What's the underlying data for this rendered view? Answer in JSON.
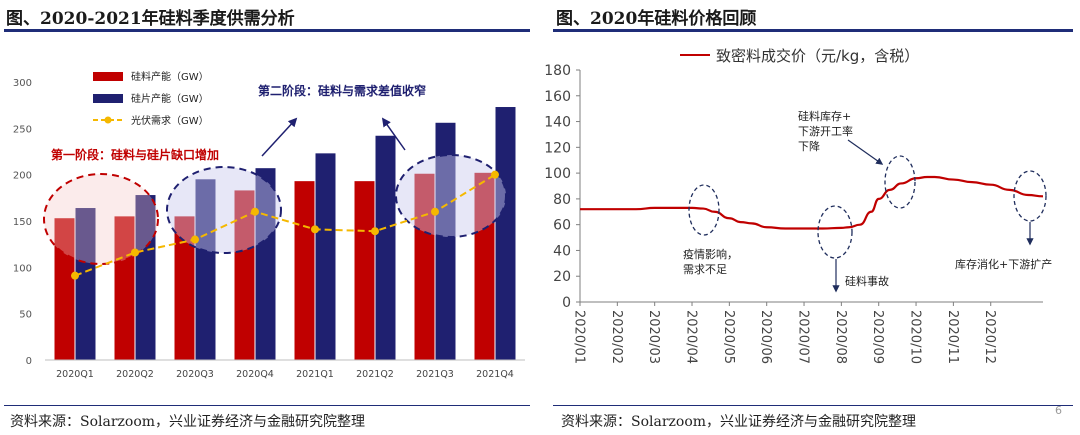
{
  "left_panel": {
    "title": "图、2020-2021年硅料季度供需分析",
    "source": "资料来源：Solarzoom，兴业证券经济与金融研究院整理",
    "annotation_stage2": "第二阶段：硅料与需求差值收窄",
    "annotation_stage1": "第一阶段：硅料与硅片缺口增加"
  },
  "right_panel": {
    "title": "图、2020年硅料价格回顾",
    "source": "资料来源：Solarzoom，兴业证券经济与金融研究院整理",
    "annotation_inventory": "硅料库存+\n下游开工率\n下降",
    "annotation_epidemic": "疫情影响，\n需求不足",
    "annotation_accident": "硅料事故",
    "annotation_destock": "库存消化+下游扩产"
  },
  "page_number": "6",
  "colors": {
    "red_bar": "#c00000",
    "navy_bar": "#1f2070",
    "demand": "#f5b800",
    "price_line": "#c00000",
    "rule": "#1f2d78"
  },
  "chart_data": [
    {
      "type": "bar",
      "title": "2020-2021年硅料季度供需分析",
      "categories": [
        "2020Q1",
        "2020Q2",
        "2020Q3",
        "2020Q4",
        "2021Q1",
        "2021Q2",
        "2021Q3",
        "2021Q4"
      ],
      "series": [
        {
          "name": "硅料产能（GW）",
          "values": [
            153,
            155,
            155,
            183,
            193,
            193,
            201,
            202
          ]
        },
        {
          "name": "硅片产能（GW）",
          "values": [
            164,
            178,
            195,
            207,
            223,
            242,
            256,
            273
          ]
        },
        {
          "name": "光伏需求（GW）",
          "kind": "line",
          "values": [
            91,
            116,
            130,
            160,
            141,
            139,
            160,
            200
          ]
        }
      ],
      "ylim": [
        0,
        300
      ],
      "yticks": [
        0,
        50,
        100,
        150,
        200,
        250,
        300
      ],
      "xlabel": "",
      "ylabel": ""
    },
    {
      "type": "line",
      "title": "2020年硅料价格回顾",
      "series": [
        {
          "name": "致密料成交价（元/kg，含税）",
          "x": [
            0,
            0.5,
            1,
            1.5,
            2,
            2.5,
            3,
            3.3,
            3.6,
            4,
            4.3,
            4.6,
            5,
            5.5,
            6,
            6.5,
            7,
            7.2,
            7.5,
            7.8,
            8,
            8.3,
            8.6,
            9,
            9.3,
            9.5,
            10,
            10.5,
            11,
            11.5,
            12,
            12.4
          ],
          "values": [
            72,
            72,
            72,
            72,
            73,
            73,
            73,
            72.5,
            70,
            65,
            62,
            61,
            58,
            57,
            57,
            57,
            57.5,
            58,
            60,
            70,
            80,
            87,
            92,
            96,
            97,
            97,
            95,
            93,
            91,
            87,
            83,
            82
          ]
        }
      ],
      "xticklabels": [
        "2020/01",
        "2020/02",
        "2020/03",
        "2020/04",
        "2020/05",
        "2020/06",
        "2020/07",
        "2020/08",
        "2020/09",
        "2020/10",
        "2020/11",
        "2020/12"
      ],
      "ylim": [
        0,
        180
      ],
      "yticks": [
        0,
        20,
        40,
        60,
        80,
        100,
        120,
        140,
        160,
        180
      ],
      "xlabel": "",
      "ylabel": ""
    }
  ]
}
